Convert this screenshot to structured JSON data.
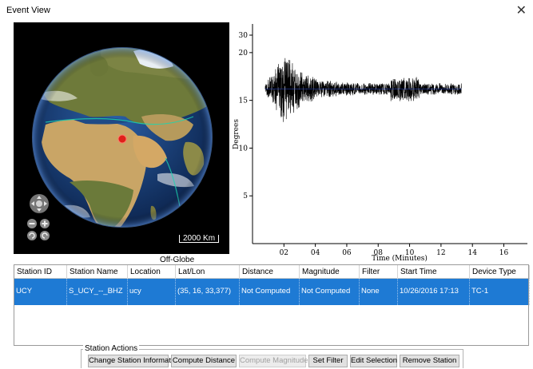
{
  "window": {
    "title": "Event View",
    "close_glyph": "✕"
  },
  "globe": {
    "scale_label": "2000 Km",
    "caption": "Off-Globe",
    "colors": {
      "ocean": "#1c3f78",
      "land": "#8a7a3e",
      "desert": "#c9a566",
      "ice": "#e8eef3",
      "marker": "#e0201a"
    }
  },
  "chart_data": {
    "type": "line",
    "xlabel": "Time  (Minutes)",
    "ylabel": "Degrees",
    "xlim": [
      0,
      17.5
    ],
    "ylim": [
      0,
      23
    ],
    "x_ticks": [
      2,
      4,
      6,
      8,
      10,
      12,
      14,
      16
    ],
    "x_tick_labels": [
      "02",
      "04",
      "06",
      "08",
      "10",
      "12",
      "14",
      "16"
    ],
    "y_ticks": [
      5,
      10,
      15,
      20
    ],
    "y_tick_labels": [
      "5",
      "10",
      "15",
      "20"
    ],
    "extra_y_tick": 30,
    "extra_y_tick_label": "30",
    "series": [
      {
        "baseline": 16.2,
        "x_start": 0.8,
        "x_end": 13.3,
        "amplitude_peak": 3.8,
        "peak_at": 2.1
      }
    ],
    "line_color": "#000000"
  },
  "table": {
    "columns": [
      "Station ID",
      "Station Name",
      "Location",
      "Lat/Lon",
      "Distance",
      "Magnitude",
      "Filter",
      "Start Time",
      "Device Type"
    ],
    "rows": [
      [
        "UCY",
        "S_UCY_--_BHZ",
        "ucy",
        "(35, 16, 33,377)",
        "Not Computed",
        "Not Computed",
        "None",
        "10/26/2016 17:13",
        "TC-1"
      ]
    ]
  },
  "actions": {
    "legend": "Station Actions",
    "buttons": [
      {
        "label": "Change Station Information",
        "enabled": true
      },
      {
        "label": "Compute Distance",
        "enabled": true
      },
      {
        "label": "Compute Magnitude",
        "enabled": false
      },
      {
        "label": "Set Filter",
        "enabled": true
      },
      {
        "label": "Edit Selection",
        "enabled": true
      },
      {
        "label": "Remove Station",
        "enabled": true
      }
    ]
  }
}
